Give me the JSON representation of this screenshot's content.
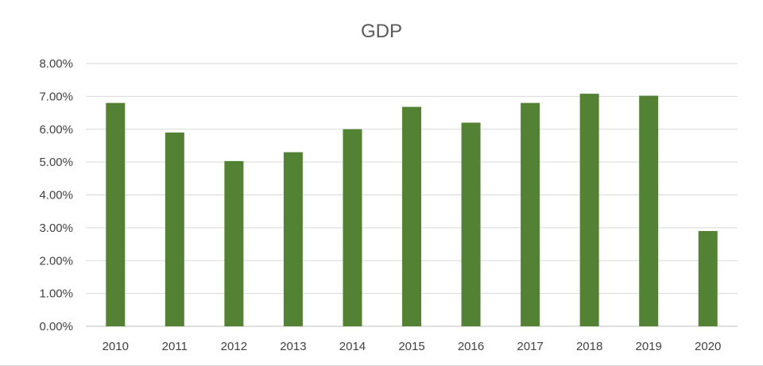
{
  "chart_data": {
    "type": "bar",
    "title": "GDP",
    "xlabel": "",
    "ylabel": "",
    "categories": [
      "2010",
      "2011",
      "2012",
      "2013",
      "2014",
      "2015",
      "2016",
      "2017",
      "2018",
      "2019",
      "2020"
    ],
    "series": [
      {
        "values": [
          6.8,
          5.9,
          5.03,
          5.3,
          6.0,
          6.68,
          6.2,
          6.8,
          7.08,
          7.02,
          2.9
        ]
      }
    ],
    "ylim": [
      0,
      8
    ],
    "yticks": [
      0,
      1,
      2,
      3,
      4,
      5,
      6,
      7,
      8
    ],
    "ytick_labels": [
      "0.00%",
      "1.00%",
      "2.00%",
      "3.00%",
      "4.00%",
      "5.00%",
      "6.00%",
      "7.00%",
      "8.00%"
    ],
    "grid": true,
    "legend": "none",
    "bar_color": "#548235"
  }
}
